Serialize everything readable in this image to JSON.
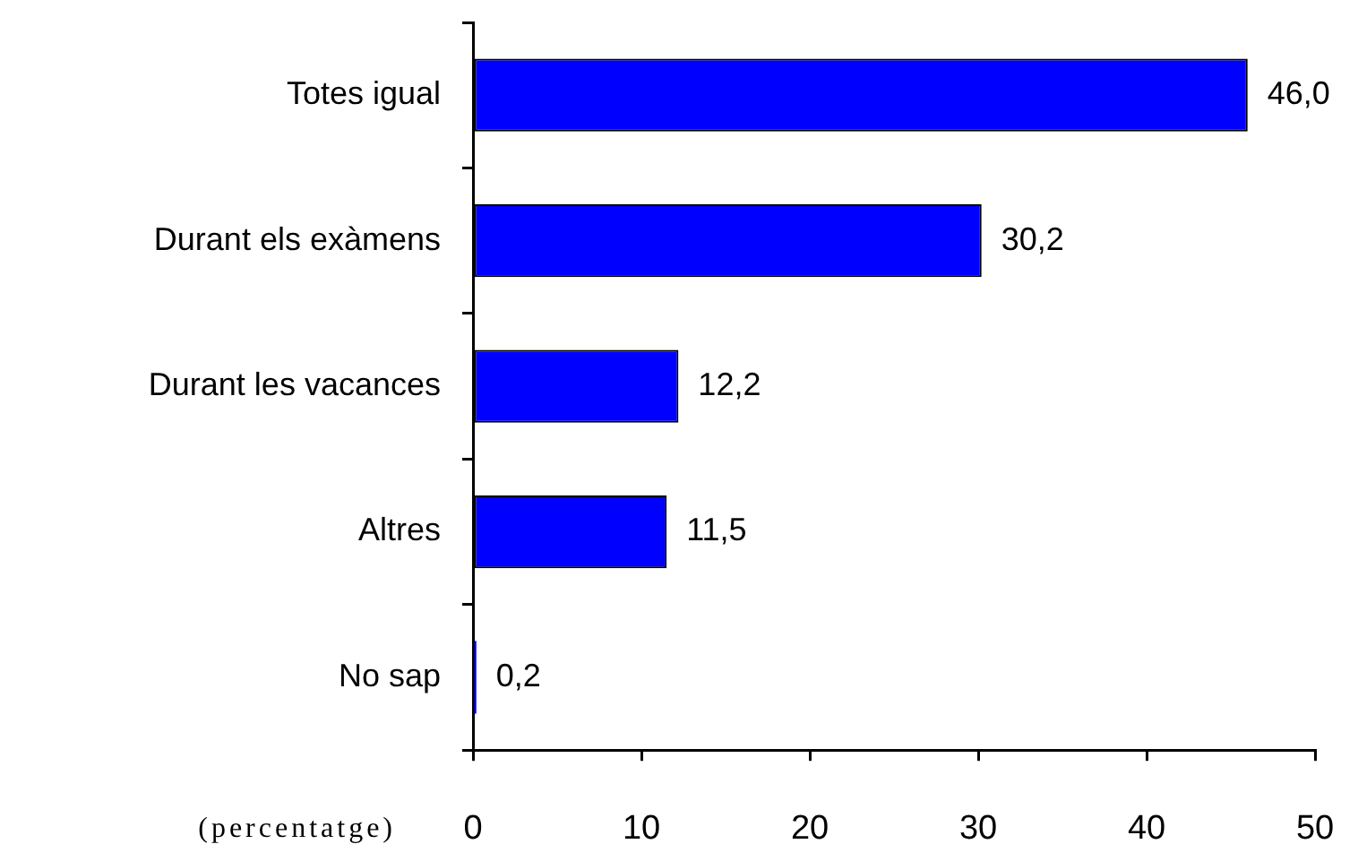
{
  "chart_data": {
    "type": "bar",
    "orientation": "horizontal",
    "categories": [
      "Totes igual",
      "Durant els exàmens",
      "Durant les vacances",
      "Altres",
      "No sap"
    ],
    "values": [
      46.0,
      30.2,
      12.2,
      11.5,
      0.2
    ],
    "value_labels": [
      "46,0",
      "30,2",
      "12,2",
      "11,5",
      "0,2"
    ],
    "color": "#0000ff",
    "xlabel": "(percentatge)",
    "xlim": [
      0,
      50
    ],
    "xticks": [
      0,
      10,
      20,
      30,
      40,
      50
    ],
    "grid": false,
    "legend": false
  }
}
